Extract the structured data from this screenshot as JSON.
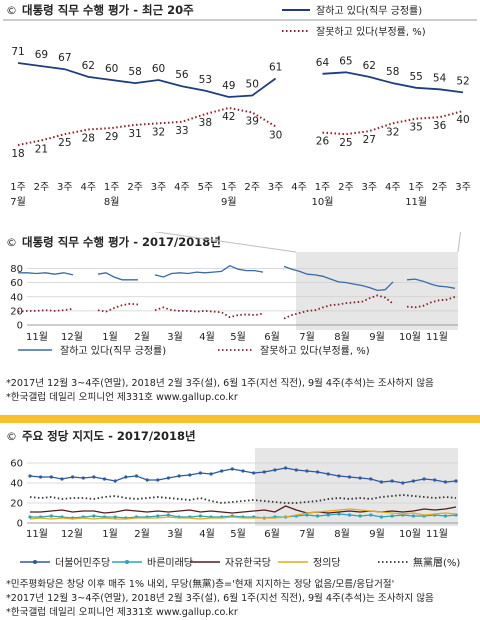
{
  "chart_data": [
    {
      "type": "line",
      "title": "대통령 직무 수행 평가 - 최근 20주",
      "categories": [
        "1주|7월",
        "2주",
        "3주",
        "4주",
        "1주|8월",
        "2주",
        "3주",
        "4주",
        "5주",
        "1주|9월",
        "2주",
        "3주",
        "4주",
        "1주|10월",
        "2주",
        "3주",
        "4주",
        "1주|11월",
        "2주",
        "3주"
      ],
      "series": [
        {
          "name": "잘하고 있다(직무 긍정률)",
          "color": "#1f3d7a",
          "style": "solid",
          "values": [
            71,
            69,
            67,
            62,
            60,
            58,
            60,
            56,
            53,
            49,
            50,
            61,
            null,
            64,
            65,
            62,
            58,
            55,
            54,
            52
          ]
        },
        {
          "name": "잘못하고 있다(부정률, %)",
          "color": "#a0141e",
          "style": "dotted",
          "values": [
            18,
            21,
            25,
            28,
            29,
            31,
            32,
            33,
            38,
            42,
            39,
            30,
            null,
            26,
            25,
            27,
            32,
            35,
            36,
            40
          ]
        }
      ],
      "ylim": [
        0,
        80
      ]
    },
    {
      "type": "line",
      "title": "대통령 직무 수행 평가 - 2017/2018년",
      "y_ticks": [
        "80",
        "60",
        "40",
        "20",
        "0"
      ],
      "ylim": [
        0,
        85
      ],
      "months": [
        "11월",
        "12월",
        "1월",
        "2월",
        "3월",
        "4월",
        "5월",
        "6월",
        "7월",
        "8월",
        "9월",
        "10월",
        "11월"
      ],
      "series": [
        {
          "name": "잘하고 있다(직무 긍정률)",
          "color": "#3a6aa8",
          "style": "solid",
          "segments": [
            [
              74,
              74,
              73,
              74,
              72,
              74,
              71
            ],
            [
              72,
              74,
              68,
              64,
              64,
              64
            ],
            [
              71,
              68,
              73,
              74,
              73,
              75,
              74,
              75,
              76,
              84,
              79,
              77,
              77,
              75
            ],
            [
              83,
              79,
              76,
              72,
              71,
              69,
              65,
              61,
              60,
              58,
              56,
              53,
              49,
              50,
              61
            ],
            [
              64,
              65,
              62,
              58,
              55,
              54,
              52
            ]
          ]
        },
        {
          "name": "잘못하고 있다(부정률, %)",
          "color": "#8a1a22",
          "style": "dotted",
          "segments": [
            [
              19,
              20,
              20,
              21,
              20,
              21,
              23
            ],
            [
              21,
              19,
              24,
              28,
              30,
              29
            ],
            [
              21,
              25,
              21,
              20,
              20,
              19,
              20,
              19,
              18,
              11,
              14,
              15,
              14,
              16
            ],
            [
              9,
              14,
              17,
              20,
              21,
              25,
              28,
              29,
              31,
              32,
              33,
              38,
              42,
              39,
              30
            ],
            [
              26,
              25,
              27,
              32,
              35,
              36,
              40
            ]
          ]
        }
      ]
    },
    {
      "type": "line",
      "title": "주요 정당 지지도 - 2017/2018년",
      "y_ticks": [
        "60",
        "40",
        "20",
        "0"
      ],
      "ylim": [
        0,
        65
      ],
      "months": [
        "11월",
        "12월",
        "1월",
        "2월",
        "3월",
        "4월",
        "5월",
        "6월",
        "7월",
        "8월",
        "9월",
        "10월",
        "11월"
      ],
      "series": [
        {
          "name": "더불어민주당",
          "color": "#2e5a9e",
          "style": "marker",
          "values": [
            47,
            46,
            46,
            44,
            46,
            45,
            46,
            44,
            42,
            46,
            47,
            43,
            43,
            45,
            47,
            48,
            50,
            49,
            52,
            54,
            52,
            50,
            51,
            53,
            55,
            53,
            52,
            51,
            49,
            47,
            46,
            45,
            44,
            41,
            42,
            40,
            42,
            44,
            43,
            41,
            42
          ]
        },
        {
          "name": "바른미래당",
          "color": "#2aa5b8",
          "style": "marker",
          "values": [
            6,
            6,
            7,
            6,
            5,
            6,
            7,
            6,
            6,
            5,
            6,
            6,
            7,
            8,
            6,
            6,
            7,
            6,
            6,
            7,
            6,
            6,
            5,
            6,
            6,
            7,
            8,
            7,
            8,
            9,
            8,
            7,
            8,
            6,
            7,
            8,
            7,
            7,
            8,
            7,
            8
          ]
        },
        {
          "name": "자유한국당",
          "color": "#5a1a1a",
          "style": "solid",
          "values": [
            11,
            11,
            12,
            13,
            11,
            12,
            12,
            10,
            11,
            13,
            12,
            11,
            12,
            11,
            12,
            13,
            11,
            12,
            11,
            10,
            11,
            12,
            13,
            11,
            17,
            13,
            10,
            11,
            10,
            11,
            12,
            11,
            12,
            11,
            12,
            11,
            12,
            14,
            13,
            14,
            16
          ]
        },
        {
          "name": "정의당",
          "color": "#e8a81a",
          "style": "solid",
          "values": [
            4,
            5,
            4,
            5,
            4,
            5,
            4,
            5,
            4,
            4,
            5,
            5,
            5,
            6,
            5,
            5,
            4,
            5,
            5,
            6,
            5,
            5,
            5,
            5,
            6,
            8,
            10,
            11,
            12,
            13,
            14,
            13,
            12,
            11,
            10,
            9,
            10,
            8,
            9,
            10,
            9
          ]
        },
        {
          "name": "無黨層(%)",
          "color": "#333333",
          "style": "dotted",
          "values": [
            26,
            25,
            26,
            24,
            25,
            25,
            24,
            26,
            27,
            25,
            24,
            25,
            26,
            25,
            24,
            23,
            25,
            22,
            20,
            21,
            22,
            23,
            22,
            21,
            20,
            20,
            21,
            22,
            24,
            25,
            24,
            25,
            24,
            26,
            27,
            28,
            27,
            26,
            25,
            26,
            25
          ]
        }
      ]
    }
  ],
  "legend_labels": {
    "approve": "잘하고 있다(직무 긍정률)",
    "disapprove": "잘못하고 있다(부정률, %)"
  },
  "notes_chart2": [
    "*2017년 12월 3~4주(연말), 2018년 2월 3주(설), 6월 1주(지선 직전), 9월 4주(추석)는 조사하지 않음",
    "*한국갤럽 데일리 오피니언 제331호 www.gallup.co.kr"
  ],
  "notes_chart3": [
    "*민주평화당은 창당 이후 매주 1% 내외, 무당(無黨)층='현재 지지하는 정당 없음/모름/응답거절'",
    "*2017년 12월 3~4주(연말), 2018년 2월 3주(설), 6월 1주(지선 직전), 9월 4주(추석)는 조사하지 않음",
    "*한국갤럽 데일리 오피니언 제331호 www.gallup.co.kr"
  ],
  "colors": {
    "approve": "#1f3d7a",
    "disapprove": "#a0141e",
    "separator": "#f6c12d",
    "highlight_bg": "#e6e6e6"
  },
  "icons": [
    "registered-mark-icon"
  ]
}
